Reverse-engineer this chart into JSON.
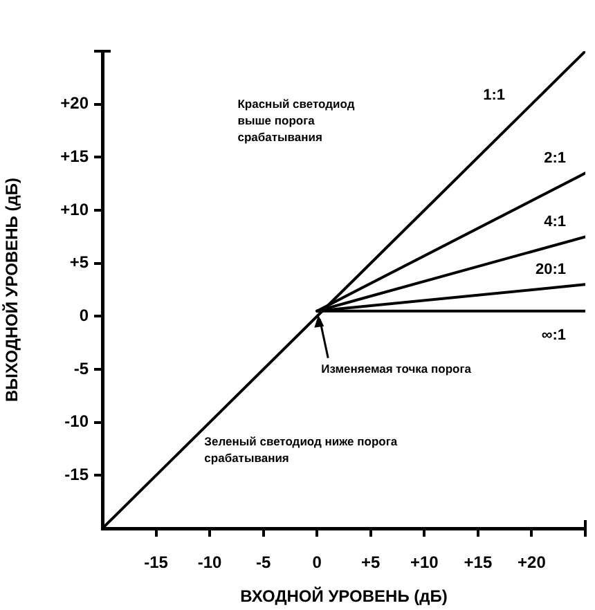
{
  "chart_data": {
    "type": "line",
    "xlabel": "ВХОДНОЙ УРОВЕНЬ (дБ)",
    "ylabel": "ВЫХОДНОЙ УРОВЕНЬ (дБ)",
    "xlim": [
      -20,
      25
    ],
    "ylim": [
      -20,
      25
    ],
    "xticks": [
      -15,
      -10,
      -5,
      0,
      {
        "value": 5,
        "label": "+5"
      },
      {
        "value": 10,
        "label": "+10"
      },
      {
        "value": 15,
        "label": "+15"
      },
      {
        "value": 20,
        "label": "+20"
      }
    ],
    "yticks": [
      -15,
      -10,
      -5,
      0,
      {
        "value": 5,
        "label": "+5"
      },
      {
        "value": 10,
        "label": "+10"
      },
      {
        "value": 15,
        "label": "+15"
      },
      {
        "value": 20,
        "label": "+20"
      }
    ],
    "grid": false,
    "legend": false,
    "marker": "none",
    "line_style": "solid",
    "series": [
      {
        "name": "1:1",
        "color": "#000000",
        "x": [
          -20,
          25
        ],
        "values": [
          -20,
          25
        ]
      },
      {
        "name": "2:1",
        "color": "#000000",
        "x": [
          0,
          25
        ],
        "values": [
          0.5,
          13.5
        ]
      },
      {
        "name": "4:1",
        "color": "#000000",
        "x": [
          0,
          25
        ],
        "values": [
          0.5,
          7.5
        ]
      },
      {
        "name": "20:1",
        "color": "#000000",
        "x": [
          0,
          25
        ],
        "values": [
          0.5,
          3
        ]
      },
      {
        "name": "∞:1",
        "color": "#000000",
        "x": [
          0,
          25
        ],
        "values": [
          0.5,
          0.5
        ]
      }
    ],
    "annotations": [
      "Красный светодиод выше порога срабатывания",
      "Зеленый светодиод ниже порога срабатывания",
      {
        "text": "Изменяемая точка порога",
        "x": 0,
        "y": 0.5
      }
    ]
  }
}
